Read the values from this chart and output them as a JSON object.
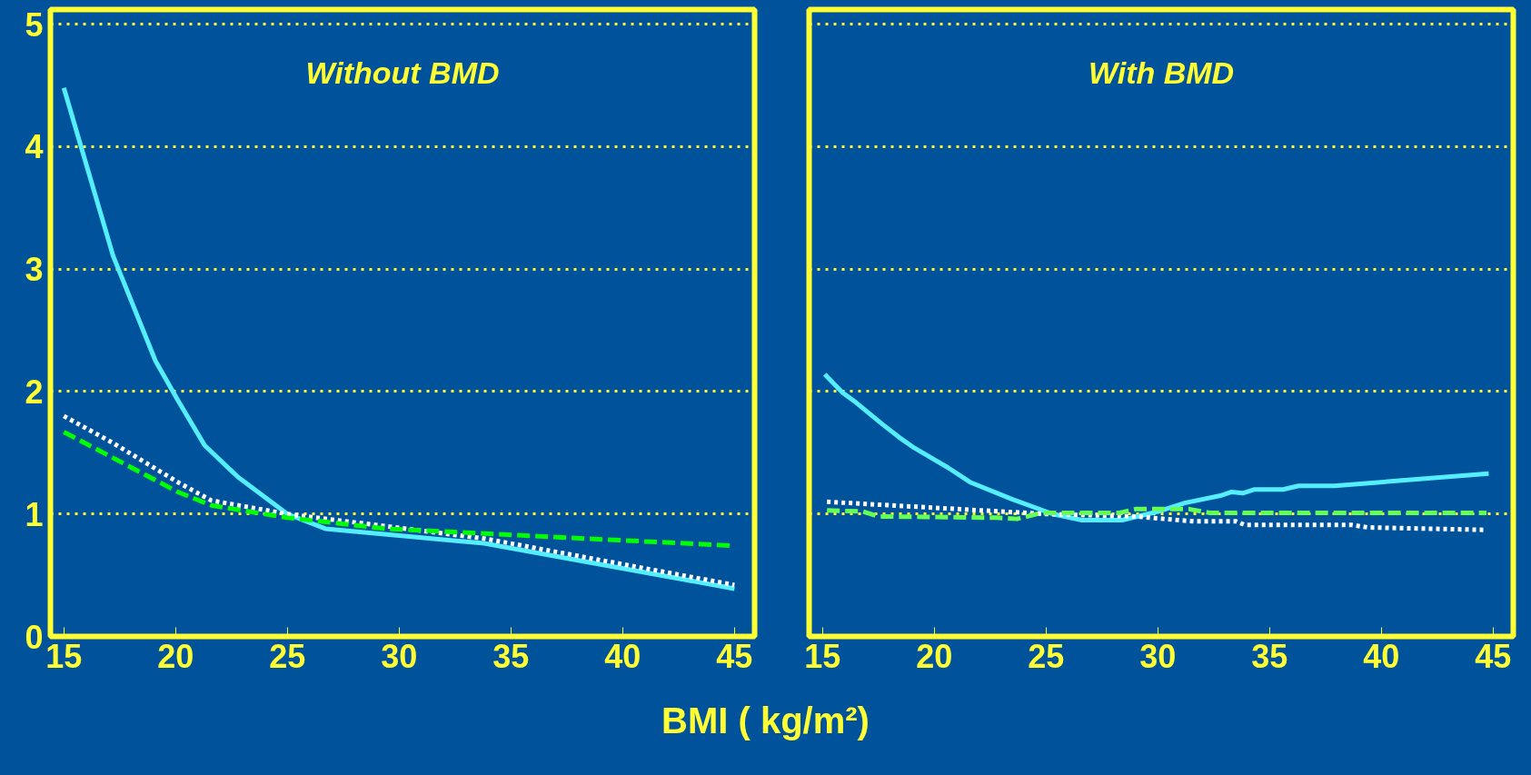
{
  "chart_data": [
    {
      "type": "line",
      "title": "Without BMD",
      "xlabel": "BMI ( kg/m²)",
      "xlim": [
        14.4,
        45.9
      ],
      "ylim": [
        0,
        5.12
      ],
      "xticks": [
        15,
        20,
        25,
        30,
        35,
        40,
        45
      ],
      "yticks": [
        0,
        1,
        2,
        3,
        4,
        5
      ],
      "grid": "y",
      "series": [
        {
          "color": "#55eeff",
          "line_style": "solid",
          "x": [
            15,
            17.2,
            19.1,
            20.1,
            21.3,
            22.8,
            25,
            26.7,
            33.8,
            45
          ],
          "values": [
            4.48,
            3.11,
            2.25,
            1.93,
            1.56,
            1.3,
            1.0,
            0.88,
            0.76,
            0.39
          ]
        },
        {
          "color": "#ffffff",
          "line_style": "dotted",
          "x": [
            15,
            17.2,
            20.1,
            21.6,
            25,
            33.8,
            45
          ],
          "values": [
            1.8,
            1.58,
            1.26,
            1.11,
            1.0,
            0.8,
            0.42
          ]
        },
        {
          "color": "#00ff00",
          "line_style": "dashed",
          "x": [
            15,
            20.1,
            21.6,
            25,
            29.4,
            45
          ],
          "values": [
            1.67,
            1.18,
            1.07,
            0.97,
            0.88,
            0.74
          ]
        }
      ]
    },
    {
      "type": "line",
      "title": "With BMD",
      "xlim": [
        14.4,
        45.9
      ],
      "ylim": [
        0,
        5.12
      ],
      "xticks": [
        15,
        20,
        25,
        30,
        35,
        40,
        45
      ],
      "yticks": [
        0,
        1,
        2,
        3,
        4,
        5
      ],
      "grid": "y",
      "tick_labels": "x",
      "series": [
        {
          "color": "#55eeff",
          "line_style": "solid",
          "x": [
            15.1,
            15.9,
            16.5,
            17.7,
            18.4,
            19.1,
            20.6,
            21.6,
            23.5,
            25.3,
            26.6,
            28.4,
            30.0,
            31.2,
            32.8,
            33.3,
            33.8,
            34.3,
            35.6,
            36.3,
            37.9,
            44.8
          ],
          "values": [
            2.14,
            1.99,
            1.91,
            1.73,
            1.63,
            1.54,
            1.38,
            1.26,
            1.12,
            1.0,
            0.95,
            0.95,
            1.02,
            1.09,
            1.15,
            1.18,
            1.17,
            1.2,
            1.2,
            1.23,
            1.23,
            1.33
          ]
        },
        {
          "color": "#ffffff",
          "line_style": "dotted",
          "x": [
            15.2,
            25,
            29,
            31.6,
            33.5,
            33.9,
            38.7,
            39.4,
            44.7
          ],
          "values": [
            1.1,
            1.0,
            0.98,
            0.94,
            0.94,
            0.91,
            0.91,
            0.89,
            0.87
          ]
        },
        {
          "color": "#66ff55",
          "line_style": "dashed",
          "x": [
            15.2,
            16.8,
            17.5,
            22.8,
            23.7,
            24.8,
            28.3,
            29,
            31.4,
            32.3,
            44.7
          ],
          "values": [
            1.03,
            1.02,
            0.98,
            0.97,
            0.96,
            1.01,
            1.01,
            1.04,
            1.04,
            1.01,
            1.01
          ]
        }
      ]
    }
  ]
}
